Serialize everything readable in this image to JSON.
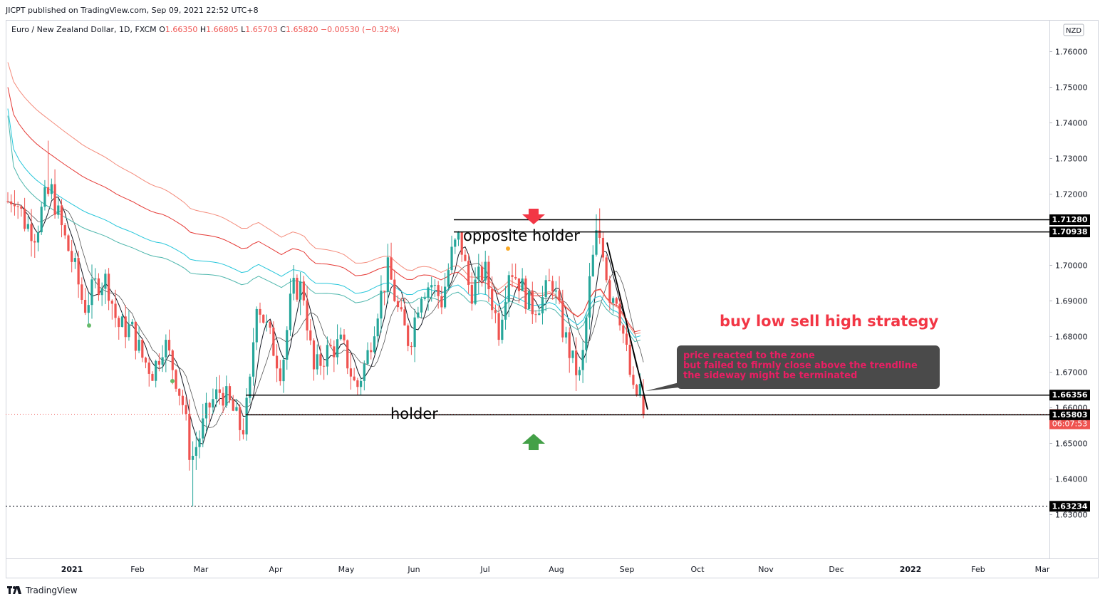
{
  "header": {
    "published": "JICPT published on TradingView.com, Sep 09, 2021 22:52 UTC+8"
  },
  "legend": {
    "symbol": "Euro / New Zealand Dollar, 1D, FXCM",
    "o_label": "O",
    "o": "1.66350",
    "h_label": "H",
    "h": "1.66805",
    "l_label": "L",
    "l": "1.65703",
    "c_label": "C",
    "c": "1.65820",
    "change": "−0.00530 (−0.32%)"
  },
  "currency_badge": "NZD",
  "footer": {
    "brand": "TradingView"
  },
  "colors": {
    "bull": "#26a69a",
    "bear": "#ef5350",
    "annotation_red": "#f23645",
    "annotation_green": "#43a047",
    "note_bg": "#4a4a4a",
    "note_text": "#e91e63",
    "ma_black": "#131722",
    "ma_teal": "#26c6da",
    "ma_red": "#e53935",
    "ma_salmon": "#f48b7b"
  },
  "chart_data": {
    "type": "candlestick",
    "ylim": [
      1.6255,
      1.7675
    ],
    "y_ticks": [
      "1.76000",
      "1.75000",
      "1.74000",
      "1.73000",
      "1.72000",
      "1.71000",
      "1.70000",
      "1.69000",
      "1.68000",
      "1.67000",
      "1.66000",
      "1.65000",
      "1.64000",
      "1.63000"
    ],
    "x_ticks": [
      "2021",
      "Feb",
      "Mar",
      "Apr",
      "May",
      "Jun",
      "Jul",
      "Aug",
      "Sep",
      "Oct",
      "Nov",
      "Dec",
      "2022",
      "Feb",
      "Mar"
    ],
    "price_levels": [
      {
        "label": "1.71280",
        "value": 1.7128
      },
      {
        "label": "1.70938",
        "value": 1.70938
      },
      {
        "label": "1.66356",
        "value": 1.66356
      },
      {
        "label": "1.65820",
        "value": 1.6582,
        "current": true,
        "countdown": "06:07:53"
      },
      {
        "label": "1.65803",
        "value": 1.65803
      },
      {
        "label": "1.63234",
        "value": 1.63234
      }
    ],
    "annotations": {
      "opposite_holder": "opposite holder",
      "holder": "holder",
      "strategy": "buy low sell high strategy",
      "note_lines": [
        "price reacted to the zone",
        "but failed to firmly close above the trendline",
        "the sideway might be terminated"
      ]
    }
  }
}
